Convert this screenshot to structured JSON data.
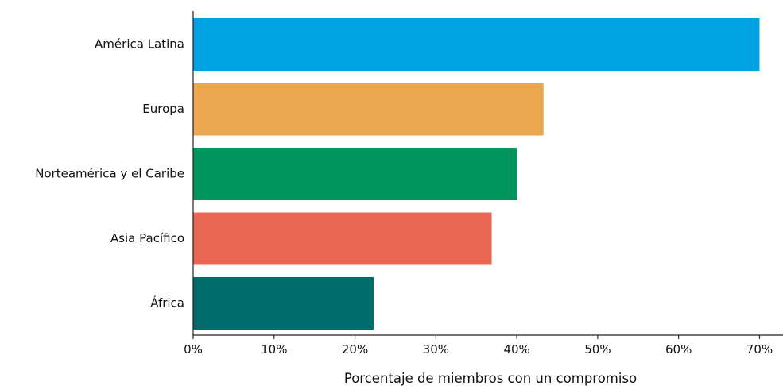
{
  "chart_data": {
    "type": "bar",
    "orientation": "horizontal",
    "categories": [
      "América Latina",
      "Europa",
      "Norteamérica y el Caribe",
      "Asia Pacífico",
      "África"
    ],
    "values": [
      70,
      43.3,
      40,
      36.9,
      22.3
    ],
    "colors": [
      "#00a3e2",
      "#eba74f",
      "#00955c",
      "#e96853",
      "#006b6b"
    ],
    "xlabel": "Porcentaje de miembros con un compromiso",
    "ylabel": "",
    "xlim": [
      0,
      72.9
    ],
    "xticks": [
      0,
      10,
      20,
      30,
      40,
      50,
      60,
      70
    ],
    "xtick_labels": [
      "0%",
      "10%",
      "20%",
      "30%",
      "40%",
      "50%",
      "60%",
      "70%"
    ],
    "grid": false,
    "legend": "none"
  }
}
